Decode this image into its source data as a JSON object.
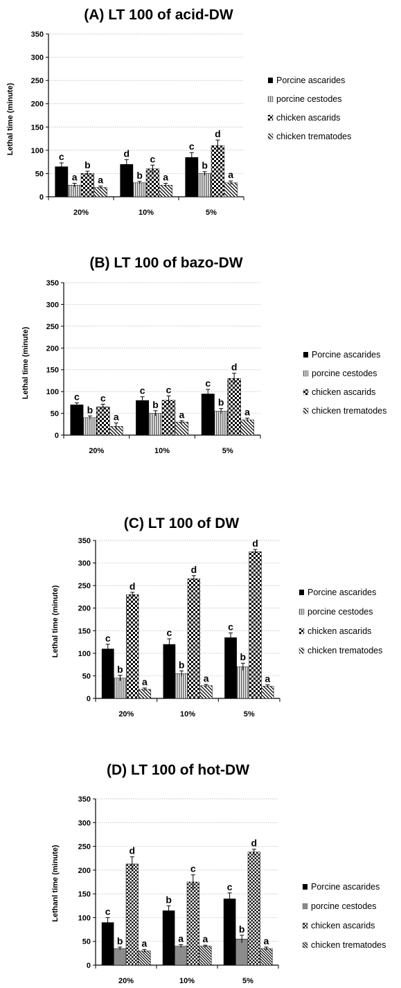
{
  "chart_data": [
    {
      "type": "bar",
      "title": "(A) LT 100 of acid-DW",
      "xlabel": "",
      "ylabel": "Lethal time (minute)",
      "ylim": [
        0,
        350
      ],
      "yticks": [
        "0",
        "50",
        "100",
        "150",
        "200",
        "250",
        "300",
        "350"
      ],
      "categories": [
        "20%",
        "10%",
        "5%"
      ],
      "grid": true,
      "legend": "right",
      "series": [
        {
          "name": "Porcine ascarides",
          "values": [
            65,
            70,
            85
          ],
          "errors": [
            8,
            10,
            10
          ],
          "letters": [
            "c",
            "d",
            "c"
          ],
          "pattern": "solid"
        },
        {
          "name": "porcine cestodes",
          "values": [
            25,
            30,
            50
          ],
          "errors": [
            4,
            3,
            4
          ],
          "letters": [
            "a",
            "b",
            "b"
          ],
          "pattern": "vlines"
        },
        {
          "name": "chicken ascarids",
          "values": [
            50,
            60,
            110
          ],
          "errors": [
            5,
            8,
            12
          ],
          "letters": [
            "b",
            "c",
            "d"
          ],
          "pattern": "checker"
        },
        {
          "name": "chicken trematodes",
          "values": [
            20,
            25,
            30
          ],
          "errors": [
            3,
            4,
            4
          ],
          "letters": [
            "a",
            "a",
            "a"
          ],
          "pattern": "diag"
        }
      ]
    },
    {
      "type": "bar",
      "title": "(B) LT 100 of bazo-DW",
      "xlabel": "",
      "ylabel": "Lethal time (minute)",
      "ylim": [
        0,
        350
      ],
      "yticks": [
        "0",
        "50",
        "100",
        "150",
        "200",
        "250",
        "300",
        "350"
      ],
      "categories": [
        "20%",
        "10%",
        "5%"
      ],
      "grid": true,
      "legend": "right",
      "series": [
        {
          "name": "Porcine ascarides",
          "values": [
            70,
            80,
            95
          ],
          "errors": [
            4,
            8,
            10
          ],
          "letters": [
            "c",
            "c",
            "c"
          ],
          "pattern": "solid"
        },
        {
          "name": "porcine cestodes",
          "values": [
            40,
            50,
            55
          ],
          "errors": [
            4,
            6,
            6
          ],
          "letters": [
            "b",
            "b",
            "b"
          ],
          "pattern": "vlines"
        },
        {
          "name": "chicken ascarids",
          "values": [
            65,
            80,
            130
          ],
          "errors": [
            6,
            10,
            12
          ],
          "letters": [
            "c",
            "c",
            "d"
          ],
          "pattern": "checker"
        },
        {
          "name": "chicken trematodes",
          "values": [
            20,
            30,
            35
          ],
          "errors": [
            8,
            3,
            4
          ],
          "letters": [
            "a",
            "a",
            "a"
          ],
          "pattern": "diag"
        }
      ]
    },
    {
      "type": "bar",
      "title": "(C) LT 100 of DW",
      "xlabel": "",
      "ylabel": "Lethal time (minute)",
      "ylim": [
        0,
        350
      ],
      "yticks": [
        "0",
        "50",
        "100",
        "150",
        "200",
        "250",
        "300",
        "350"
      ],
      "categories": [
        "20%",
        "10%",
        "5%"
      ],
      "grid": true,
      "legend": "right",
      "series": [
        {
          "name": "Porcine ascarides",
          "values": [
            110,
            120,
            135
          ],
          "errors": [
            10,
            12,
            10
          ],
          "letters": [
            "c",
            "c",
            "c"
          ],
          "pattern": "solid"
        },
        {
          "name": "porcine cestodes",
          "values": [
            45,
            55,
            70
          ],
          "errors": [
            6,
            6,
            8
          ],
          "letters": [
            "b",
            "b",
            "b"
          ],
          "pattern": "vlines"
        },
        {
          "name": "chicken ascarids",
          "values": [
            230,
            265,
            325
          ],
          "errors": [
            5,
            7,
            5
          ],
          "letters": [
            "d",
            "d",
            "d"
          ],
          "pattern": "checker"
        },
        {
          "name": "chicken trematodes",
          "values": [
            20,
            28,
            27
          ],
          "errors": [
            3,
            3,
            3
          ],
          "letters": [
            "a",
            "a",
            "a"
          ],
          "pattern": "diag"
        }
      ]
    },
    {
      "type": "bar",
      "title": "(D) LT 100 of hot-DW",
      "xlabel": "",
      "ylabel": "Lethanl time (minute)",
      "ylim": [
        0,
        350
      ],
      "yticks": [
        "0",
        "50",
        "100",
        "150",
        "200",
        "250",
        "300",
        "350"
      ],
      "categories": [
        "20%",
        "10%",
        "5%"
      ],
      "grid": true,
      "legend": "right",
      "series": [
        {
          "name": "Porcine ascarides",
          "values": [
            90,
            115,
            140
          ],
          "errors": [
            10,
            10,
            12
          ],
          "letters": [
            "c",
            "b",
            "c"
          ],
          "pattern": "solid"
        },
        {
          "name": "porcine cestodes",
          "values": [
            35,
            40,
            55
          ],
          "errors": [
            3,
            3,
            8
          ],
          "letters": [
            "b",
            "a",
            "b"
          ],
          "pattern": "grey"
        },
        {
          "name": "chicken ascarids",
          "values": [
            213,
            175,
            238
          ],
          "errors": [
            15,
            15,
            6
          ],
          "letters": [
            "d",
            "c",
            "d"
          ],
          "pattern": "checker2"
        },
        {
          "name": "chicken trematodes",
          "values": [
            30,
            40,
            35
          ],
          "errors": [
            3,
            2,
            3
          ],
          "letters": [
            "a",
            "a",
            "a"
          ],
          "pattern": "diag2"
        }
      ]
    }
  ]
}
